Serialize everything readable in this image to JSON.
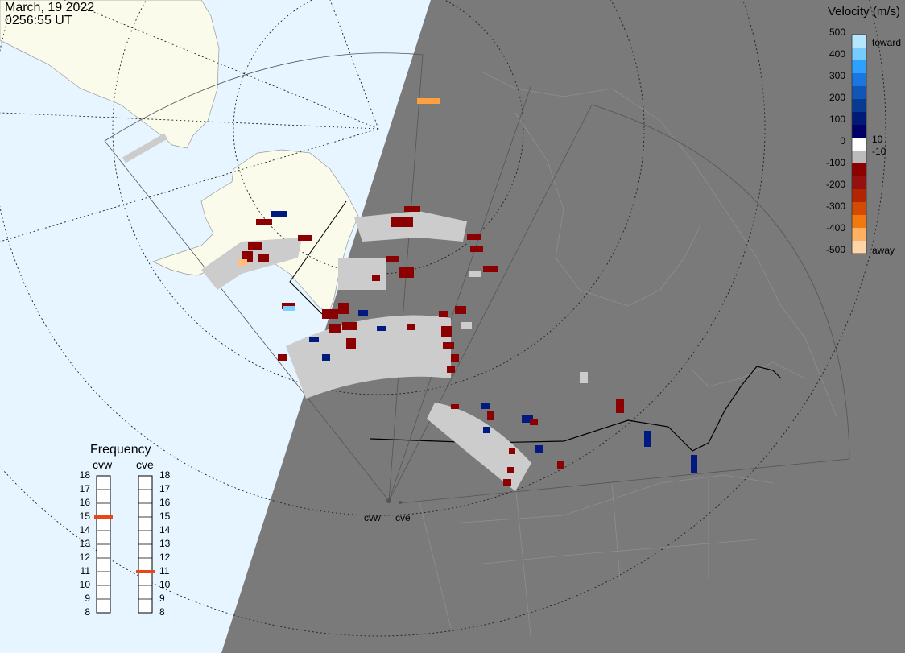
{
  "header": {
    "date": "March, 19 2022",
    "time": "0256:55 UT"
  },
  "legend": {
    "title": "Velocity (m/s)",
    "ticks": [
      "500",
      "400",
      "300",
      "200",
      "100",
      "0",
      "-100",
      "-200",
      "-300",
      "-400",
      "-500"
    ],
    "toward_label": "toward",
    "away_label": "away",
    "pos_threshold": "10",
    "neg_threshold": "-10",
    "colors": [
      "#b5e6ff",
      "#77ccff",
      "#2ea0ff",
      "#1a76e0",
      "#1055b8",
      "#073a90",
      "#001a78",
      "#000066",
      "#ffffff",
      "#bbbbbb",
      "#8b0000",
      "#961010",
      "#b22500",
      "#d44a00",
      "#f07a10",
      "#ffb060",
      "#ffd4a8"
    ]
  },
  "radars": [
    "cvw",
    "cve"
  ],
  "frequency": {
    "title": "Frequency",
    "labels": [
      "18",
      "17",
      "16",
      "15",
      "14",
      "13",
      "12",
      "11",
      "10",
      "9",
      "8"
    ],
    "cvw_value": 15,
    "cve_value": 11,
    "marker_color": "#e8471a"
  },
  "colors": {
    "ocean": "#e6f5ff",
    "land_day": "#fbfbeb",
    "night": "#7a7a7a",
    "ground_scatter": "#cccccc",
    "away_dark": "#8b0000",
    "toward_dark": "#001a80"
  }
}
